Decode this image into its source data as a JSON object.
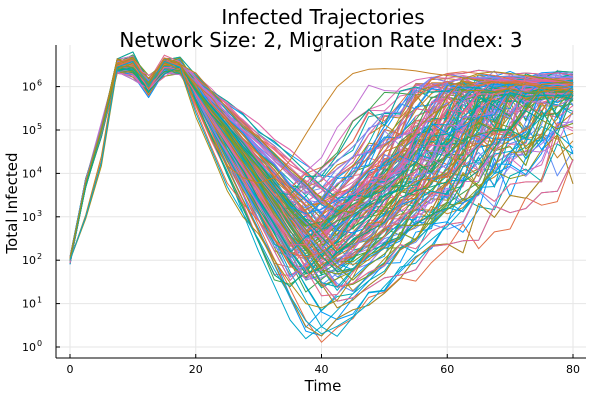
{
  "chart_data": {
    "type": "line",
    "title": "Infected Trajectories",
    "subtitle": "Network Size: 2, Migration Rate Index: 3",
    "xlabel": "Time",
    "ylabel": "Total Infected",
    "x_scale": "linear",
    "y_scale": "log10",
    "xlim": [
      0,
      80
    ],
    "ylim": [
      1,
      5000000
    ],
    "x_ticks": [
      0,
      20,
      40,
      60,
      80
    ],
    "y_ticks": [
      1,
      10,
      100,
      1000,
      10000,
      100000,
      1000000
    ],
    "y_tick_labels": [
      "10",
      "10",
      "10",
      "10",
      "10",
      "10",
      "10"
    ],
    "y_tick_exponents": [
      "0",
      "1",
      "2",
      "3",
      "4",
      "5",
      "6"
    ],
    "grid": true,
    "legend": "none",
    "x": [
      0,
      2.5,
      5,
      7.5,
      10,
      12.5,
      15,
      17.5,
      20,
      22.5,
      25,
      27.5,
      30,
      32.5,
      35,
      37.5,
      40,
      42.5,
      45,
      47.5,
      50,
      52.5,
      55,
      57.5,
      60,
      62.5,
      65,
      67.5,
      70,
      72.5,
      75,
      77.5,
      80
    ],
    "series_count": 220,
    "palette": [
      "#009AFA",
      "#E36F47",
      "#3EA44E",
      "#C371D2",
      "#AC8E18",
      "#00AAAE",
      "#ED5E93",
      "#C68225",
      "#00A98D",
      "#8E971E",
      "#00A9CD",
      "#9B7FE9",
      "#618DF6",
      "#F16D84",
      "#DC6BB2"
    ],
    "representative_series": [
      {
        "y": [
          100,
          1000,
          20000,
          3000000,
          4000000,
          1000000,
          4000000,
          3000000,
          300000,
          40000,
          6000,
          2000,
          800,
          300,
          150,
          120,
          150,
          300,
          1200,
          6000,
          30000,
          150000,
          600000,
          1500000,
          2000000,
          2200000,
          2000000,
          1800000,
          1500000,
          1200000,
          1000000,
          900000,
          800000
        ]
      },
      {
        "y": [
          100,
          900,
          15000,
          2500000,
          3500000,
          1200000,
          3500000,
          2500000,
          200000,
          30000,
          4000,
          1000,
          400,
          100,
          30,
          10,
          8,
          12,
          40,
          200,
          1000,
          5000,
          30000,
          150000,
          600000,
          1500000,
          2000000,
          2200000,
          2000000,
          1800000,
          1600000,
          1400000,
          1200000
        ]
      },
      {
        "y": [
          100,
          1100,
          25000,
          3500000,
          4500000,
          900000,
          4500000,
          3500000,
          400000,
          60000,
          15000,
          8000,
          6000,
          8000,
          20000,
          80000,
          300000,
          1000000,
          2000000,
          2500000,
          2600000,
          2500000,
          2300000,
          2000000,
          1800000,
          1600000,
          1400000,
          1300000,
          1200000,
          1100000,
          1000000,
          900000,
          800000
        ]
      },
      {
        "y": [
          100,
          1000,
          18000,
          2800000,
          3800000,
          1000000,
          3800000,
          2800000,
          250000,
          35000,
          5000,
          1200,
          300,
          60,
          15,
          4,
          2,
          3,
          5,
          10,
          25,
          60,
          150,
          300,
          600,
          1500,
          4000,
          10000,
          30000,
          80000,
          200000,
          500000,
          1000000
        ]
      }
    ]
  }
}
